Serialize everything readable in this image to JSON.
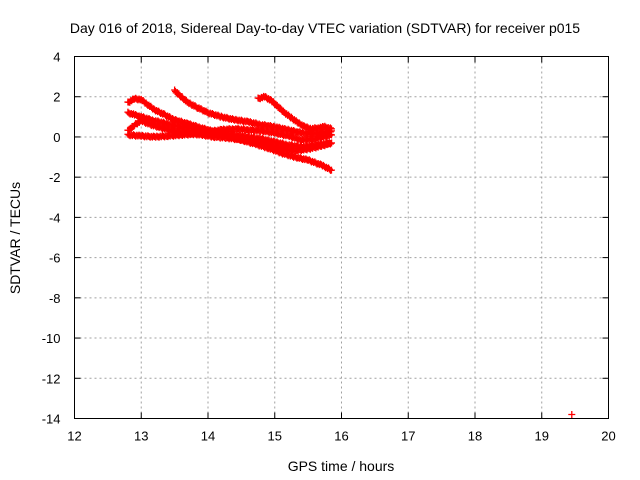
{
  "chart_data": {
    "type": "scatter",
    "title": "Day 016 of 2018, Sidereal Day-to-day VTEC variation (SDTVAR) for receiver p015",
    "xlabel": "GPS time / hours",
    "ylabel": "SDTVAR / TECUs",
    "xlim": [
      12,
      20
    ],
    "ylim": [
      -14,
      4
    ],
    "xticks": [
      12,
      13,
      14,
      15,
      16,
      17,
      18,
      19,
      20
    ],
    "yticks": [
      4,
      2,
      0,
      -2,
      -4,
      -6,
      -8,
      -10,
      -12,
      -14
    ],
    "grid": true,
    "marker": "+",
    "color": "#ff0000",
    "series": [
      {
        "values": [
          [
            12.8,
            1.7
          ],
          [
            12.9,
            1.9
          ],
          [
            13.0,
            1.85
          ],
          [
            13.1,
            1.6
          ],
          [
            13.2,
            1.35
          ],
          [
            13.35,
            1.1
          ],
          [
            13.5,
            0.85
          ],
          [
            13.7,
            0.65
          ],
          [
            13.9,
            0.45
          ],
          [
            14.1,
            0.25
          ],
          [
            14.3,
            0.05
          ],
          [
            14.5,
            -0.15
          ],
          [
            14.7,
            -0.35
          ],
          [
            14.9,
            -0.55
          ],
          [
            15.1,
            -0.8
          ],
          [
            15.3,
            -1.0
          ],
          [
            15.5,
            -1.15
          ],
          [
            15.7,
            -1.4
          ],
          [
            15.85,
            -1.65
          ]
        ]
      },
      {
        "values": [
          [
            12.8,
            1.2
          ],
          [
            12.9,
            1.1
          ],
          [
            13.0,
            1.0
          ],
          [
            13.2,
            0.8
          ],
          [
            13.4,
            0.65
          ],
          [
            13.6,
            0.5
          ],
          [
            13.8,
            0.4
          ],
          [
            14.0,
            0.3
          ],
          [
            14.2,
            0.2
          ],
          [
            14.4,
            0.1
          ],
          [
            14.6,
            0.0
          ],
          [
            14.8,
            -0.1
          ],
          [
            15.0,
            -0.25
          ],
          [
            15.2,
            -0.4
          ],
          [
            15.4,
            -0.5
          ],
          [
            15.6,
            -0.4
          ],
          [
            15.85,
            -0.3
          ]
        ]
      },
      {
        "values": [
          [
            12.8,
            0.3
          ],
          [
            12.9,
            0.6
          ],
          [
            13.0,
            0.8
          ],
          [
            13.15,
            0.6
          ],
          [
            13.3,
            0.45
          ],
          [
            13.5,
            0.3
          ],
          [
            13.7,
            0.2
          ],
          [
            13.9,
            0.1
          ],
          [
            14.1,
            0.0
          ],
          [
            14.3,
            -0.05
          ],
          [
            14.5,
            -0.15
          ],
          [
            14.7,
            -0.25
          ],
          [
            14.9,
            -0.4
          ],
          [
            15.1,
            -0.55
          ],
          [
            15.3,
            -0.7
          ],
          [
            15.5,
            -0.6
          ],
          [
            15.7,
            -0.45
          ],
          [
            15.85,
            -0.3
          ]
        ]
      },
      {
        "values": [
          [
            12.8,
            0.1
          ],
          [
            13.0,
            0.05
          ],
          [
            13.2,
            0.0
          ],
          [
            13.4,
            0.05
          ],
          [
            13.6,
            0.1
          ],
          [
            13.8,
            0.15
          ],
          [
            14.0,
            0.25
          ],
          [
            14.2,
            0.35
          ],
          [
            14.4,
            0.4
          ],
          [
            14.6,
            0.35
          ],
          [
            14.8,
            0.3
          ],
          [
            15.0,
            0.2
          ],
          [
            15.2,
            0.05
          ],
          [
            15.4,
            -0.15
          ],
          [
            15.6,
            -0.1
          ],
          [
            15.85,
            0.1
          ]
        ]
      },
      {
        "values": [
          [
            13.5,
            2.3
          ],
          [
            13.6,
            2.0
          ],
          [
            13.7,
            1.7
          ],
          [
            13.85,
            1.45
          ],
          [
            14.0,
            1.2
          ],
          [
            14.2,
            1.0
          ],
          [
            14.4,
            0.85
          ],
          [
            14.6,
            0.75
          ],
          [
            14.8,
            0.6
          ],
          [
            15.0,
            0.5
          ],
          [
            15.2,
            0.35
          ],
          [
            15.4,
            0.2
          ],
          [
            15.6,
            0.15
          ],
          [
            15.85,
            0.3
          ]
        ]
      },
      {
        "values": [
          [
            14.75,
            1.9
          ],
          [
            14.85,
            2.0
          ],
          [
            14.95,
            1.8
          ],
          [
            15.05,
            1.5
          ],
          [
            15.15,
            1.2
          ],
          [
            15.25,
            0.95
          ],
          [
            15.35,
            0.7
          ],
          [
            15.45,
            0.5
          ],
          [
            15.55,
            0.4
          ],
          [
            15.65,
            0.45
          ],
          [
            15.75,
            0.5
          ],
          [
            15.85,
            0.4
          ]
        ]
      },
      {
        "values": [
          [
            19.45,
            -13.8
          ]
        ]
      }
    ]
  }
}
